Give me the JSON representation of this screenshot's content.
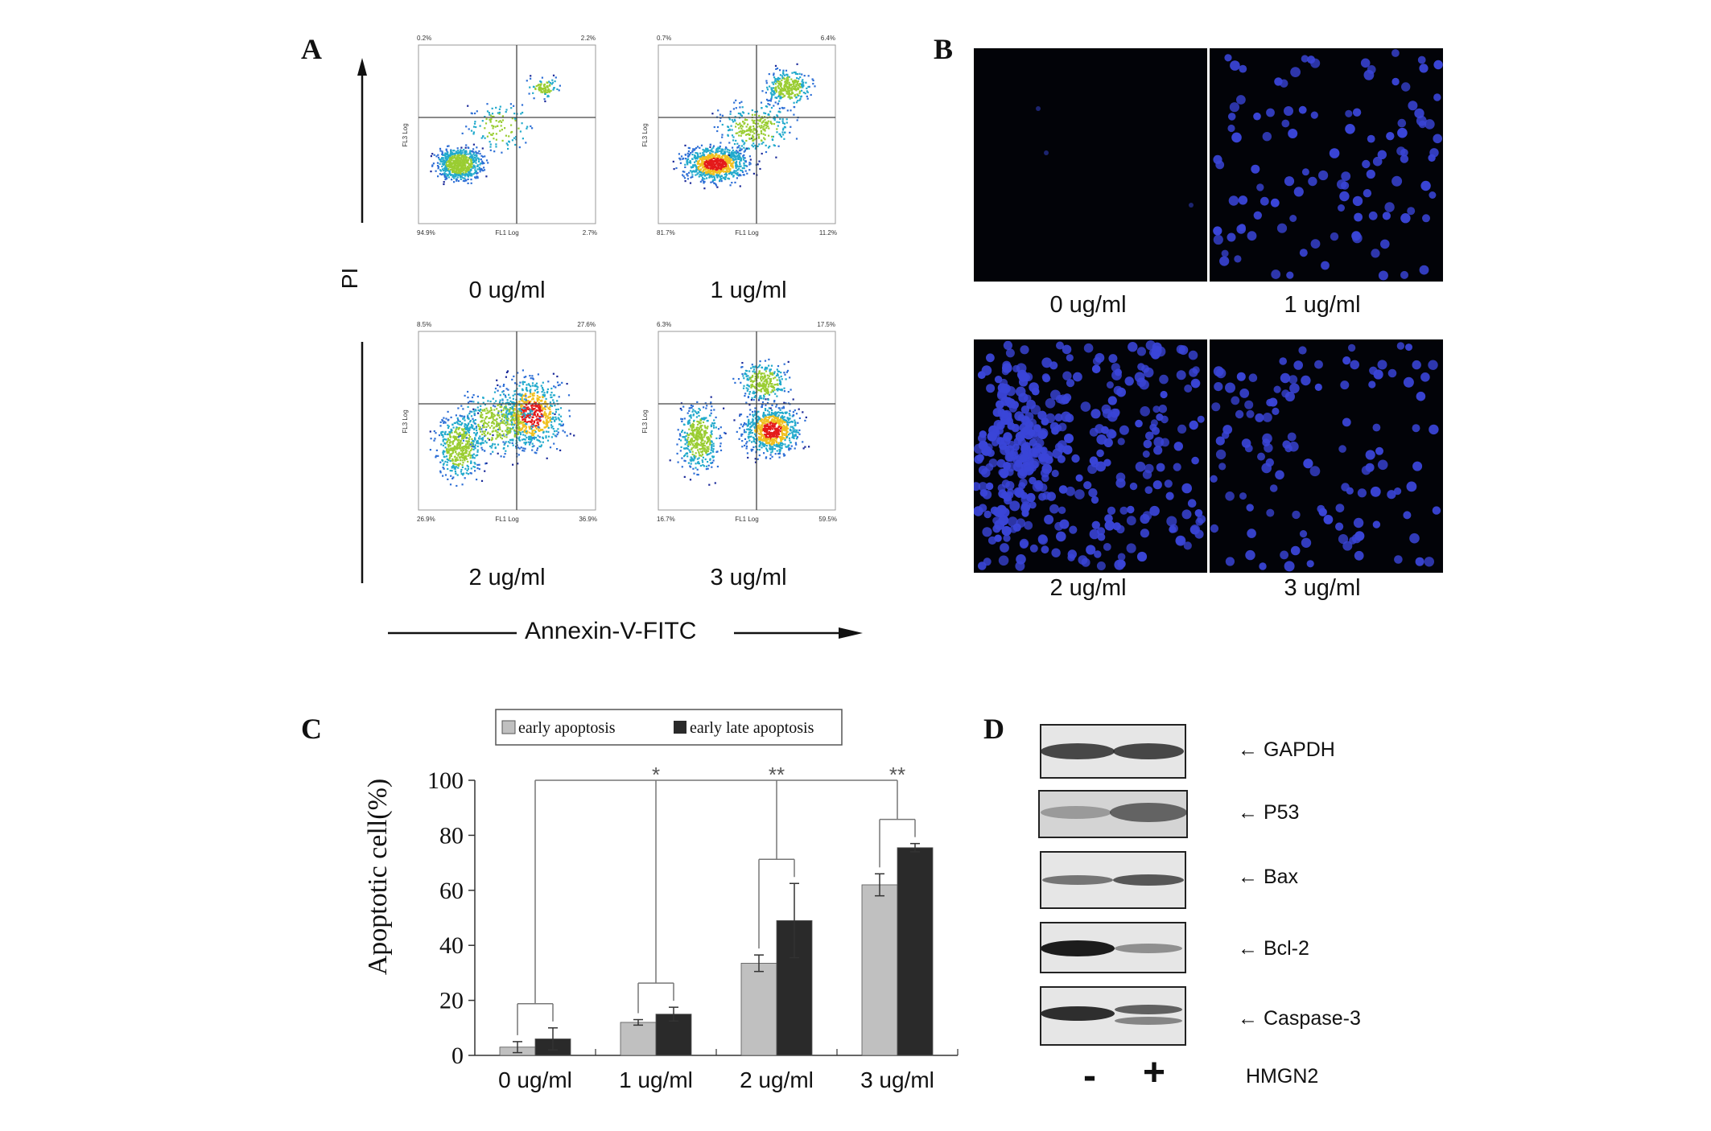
{
  "figure": {
    "panels": {
      "A": "A",
      "B": "B",
      "C": "C",
      "D": "D"
    }
  },
  "panel_a": {
    "y_axis_label": "PI",
    "x_axis_label": "Annexin-V-FITC",
    "quadrant_axis_x": "FL1 Log",
    "quadrant_axis_y": "FL3 Log",
    "plots": [
      {
        "concentration": "0 ug/ml",
        "q_ul": "0.2%",
        "q_ur": "2.2%",
        "q_ll": "94.9%",
        "q_lr": "2.7%"
      },
      {
        "concentration": "1 ug/ml",
        "q_ul": "0.7%",
        "q_ur": "6.4%",
        "q_ll": "81.7%",
        "q_lr": "11.2%"
      },
      {
        "concentration": "2 ug/ml",
        "q_ul": "8.5%",
        "q_ur": "27.6%",
        "q_ll": "26.9%",
        "q_lr": "36.9%"
      },
      {
        "concentration": "3 ug/ml",
        "q_ul": "6.3%",
        "q_ur": "17.5%",
        "q_ll": "16.7%",
        "q_lr": "59.5%"
      }
    ]
  },
  "panel_b": {
    "images": [
      {
        "concentration": "0 ug/ml"
      },
      {
        "concentration": "1 ug/ml"
      },
      {
        "concentration": "2 ug/ml"
      },
      {
        "concentration": "3 ug/ml"
      }
    ],
    "stain_color": "#3a45d8"
  },
  "chart_data": {
    "type": "bar",
    "ylabel": "Apoptotic cell(%)",
    "ylim": [
      0,
      100
    ],
    "yticks": [
      "0",
      "20",
      "40",
      "60",
      "80",
      "100"
    ],
    "categories": [
      "0 ug/ml",
      "1 ug/ml",
      "2 ug/ml",
      "3 ug/ml"
    ],
    "series": [
      {
        "name": "early apoptosis",
        "color": "#c0c0c0",
        "values": [
          3,
          12,
          33.5,
          62
        ],
        "errors": [
          2,
          1,
          3,
          4
        ]
      },
      {
        "name": "early late apoptosis",
        "color": "#2a2a2a",
        "values": [
          6,
          15,
          49,
          75.5
        ],
        "errors": [
          4,
          2.5,
          13.5,
          1.5
        ]
      }
    ],
    "significance": [
      "",
      "*",
      "**",
      "**"
    ],
    "legend_position": "top"
  },
  "panel_d": {
    "proteins": [
      "GAPDH",
      "P53",
      "Bax",
      "Bcl-2",
      "Caspase-3"
    ],
    "lanes": [
      "-",
      "+"
    ],
    "treatment_label": "HMGN2"
  }
}
